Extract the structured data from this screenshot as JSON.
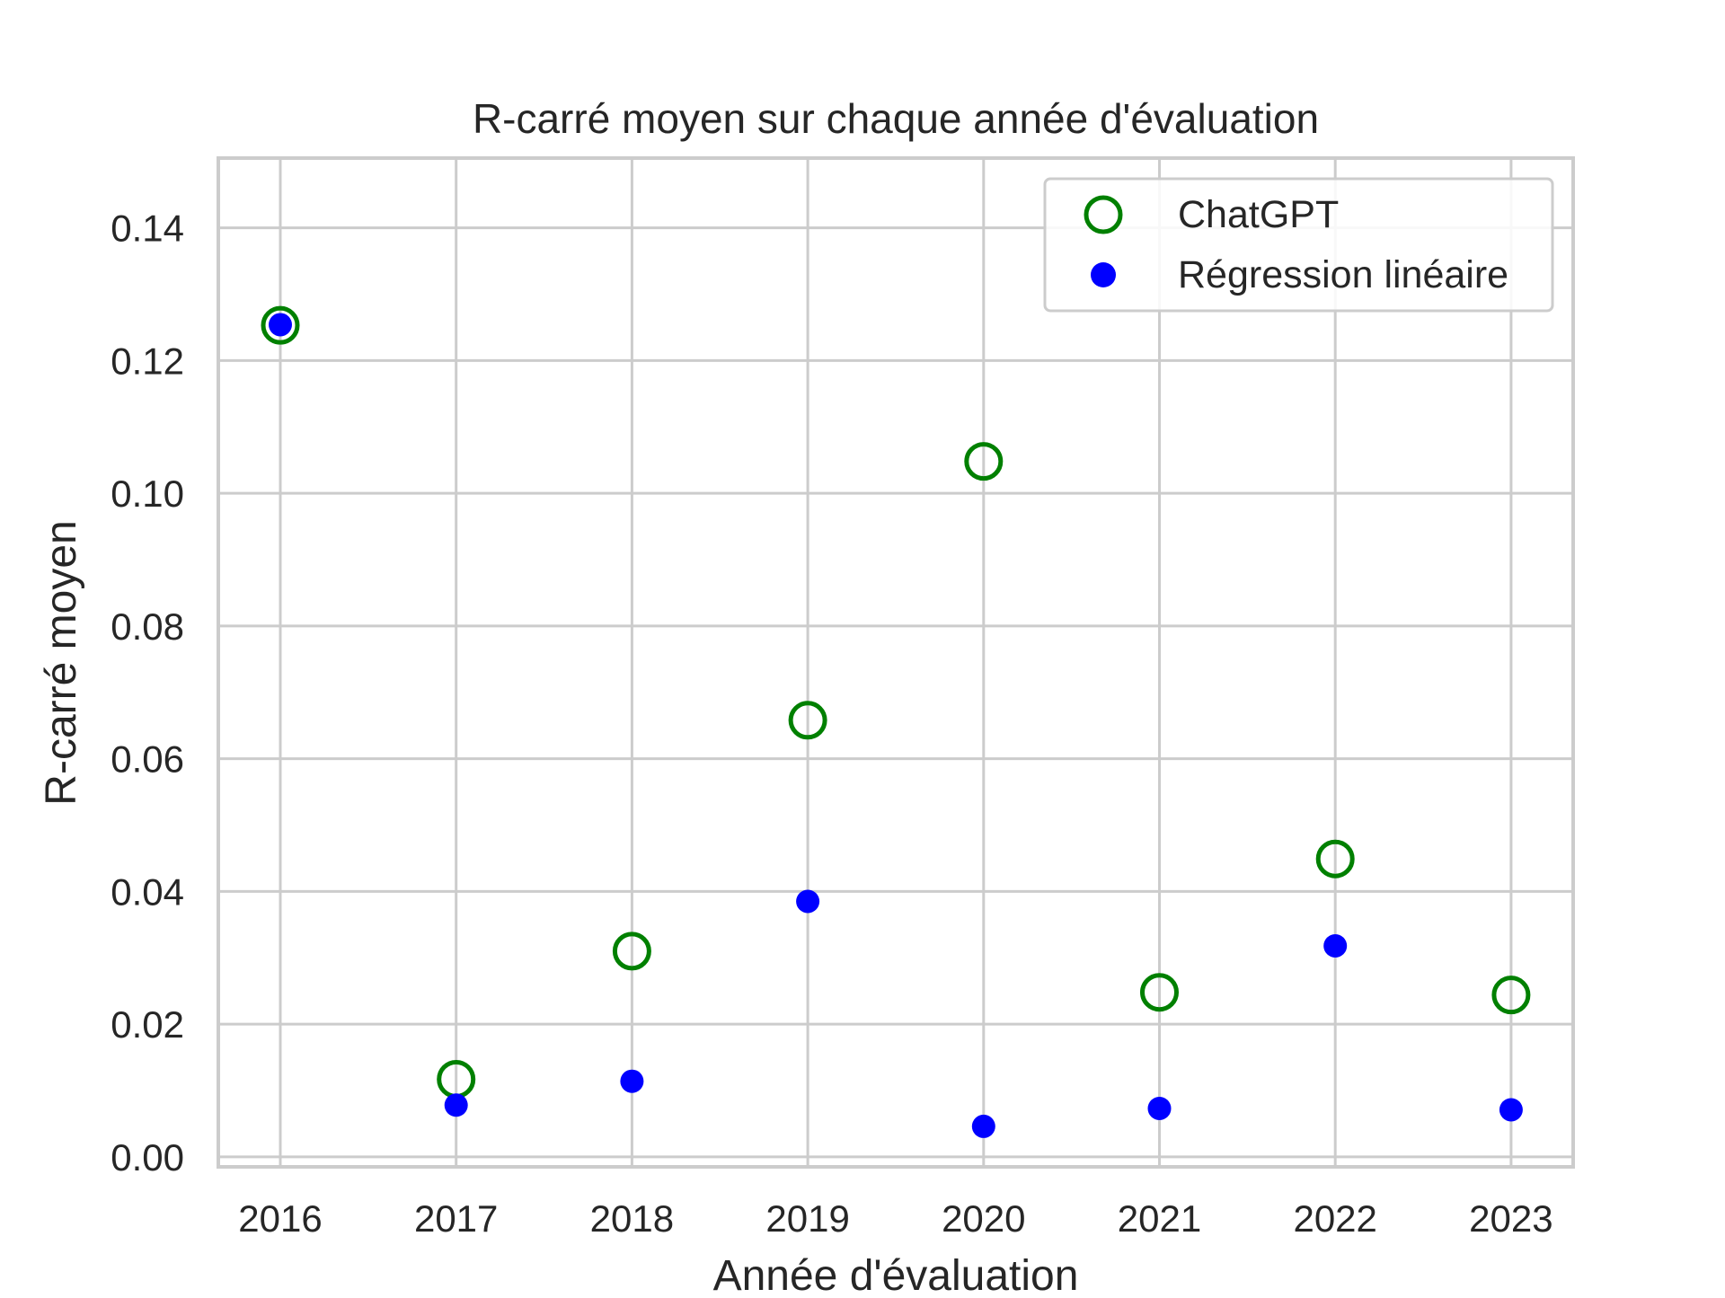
{
  "chart_data": {
    "type": "scatter",
    "title": "R-carré moyen sur chaque année d'évaluation",
    "xlabel": "Année d'évaluation",
    "ylabel": "R-carré moyen",
    "categories": [
      "2016",
      "2017",
      "2018",
      "2019",
      "2020",
      "2021",
      "2022",
      "2023"
    ],
    "ylim": [
      -0.0015,
      0.1505
    ],
    "yticks": [
      "0.00",
      "0.02",
      "0.04",
      "0.06",
      "0.08",
      "0.10",
      "0.12",
      "0.14"
    ],
    "grid": true,
    "legend_position": "top-right",
    "series": [
      {
        "name": "ChatGPT",
        "marker": "open-circle",
        "color": "#008000",
        "values": [
          0.1253,
          0.0117,
          0.031,
          0.0658,
          0.1048,
          0.0248,
          0.0449,
          0.0244
        ]
      },
      {
        "name": "Régression linéaire",
        "marker": "filled-circle",
        "color": "#0000ff",
        "values": [
          0.1254,
          0.0078,
          0.0114,
          0.0385,
          0.0046,
          0.0073,
          0.0318,
          0.0071
        ]
      }
    ]
  }
}
